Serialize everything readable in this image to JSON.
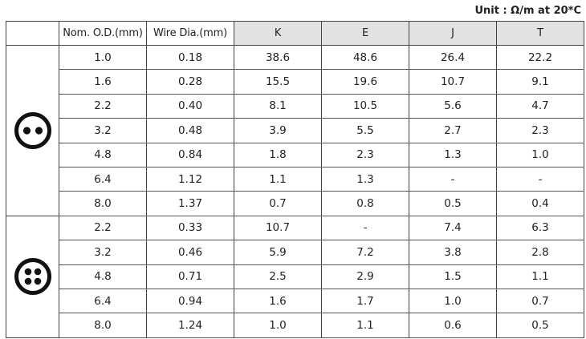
{
  "unit_label": "Unit : Ω/m at 20*C",
  "headers": [
    "",
    "Nom. O.D.(mm)",
    "Wire Dia.(mm)",
    "K",
    "E",
    "J",
    "T"
  ],
  "groups": [
    {
      "icon": "two-core-cable-icon",
      "rows": [
        [
          "1.0",
          "0.18",
          "38.6",
          "48.6",
          "26.4",
          "22.2"
        ],
        [
          "1.6",
          "0.28",
          "15.5",
          "19.6",
          "10.7",
          "9.1"
        ],
        [
          "2.2",
          "0.40",
          "8.1",
          "10.5",
          "5.6",
          "4.7"
        ],
        [
          "3.2",
          "0.48",
          "3.9",
          "5.5",
          "2.7",
          "2.3"
        ],
        [
          "4.8",
          "0.84",
          "1.8",
          "2.3",
          "1.3",
          "1.0"
        ],
        [
          "6.4",
          "1.12",
          "1.1",
          "1.3",
          "-",
          "-"
        ],
        [
          "8.0",
          "1.37",
          "0.7",
          "0.8",
          "0.5",
          "0.4"
        ]
      ]
    },
    {
      "icon": "four-core-cable-icon",
      "rows": [
        [
          "2.2",
          "0.33",
          "10.7",
          "-",
          "7.4",
          "6.3"
        ],
        [
          "3.2",
          "0.46",
          "5.9",
          "7.2",
          "3.8",
          "2.8"
        ],
        [
          "4.8",
          "0.71",
          "2.5",
          "2.9",
          "1.5",
          "1.1"
        ],
        [
          "6.4",
          "0.94",
          "1.6",
          "1.7",
          "1.0",
          "0.7"
        ],
        [
          "8.0",
          "1.24",
          "1.0",
          "1.1",
          "0.6",
          "0.5"
        ]
      ]
    }
  ]
}
